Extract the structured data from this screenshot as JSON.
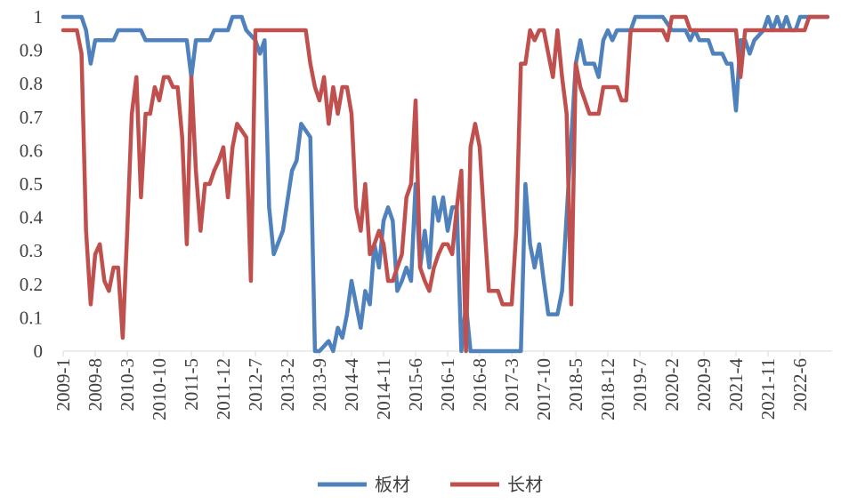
{
  "chart_data": {
    "type": "line",
    "title": "",
    "xlabel": "",
    "ylabel": "",
    "ylim": [
      0,
      1
    ],
    "yticks": [
      "0",
      "0.1",
      "0.2",
      "0.3",
      "0.4",
      "0.5",
      "0.6",
      "0.7",
      "0.8",
      "0.9",
      "1"
    ],
    "xlim": [
      "2009-1",
      "2023-1"
    ],
    "xticks": [
      "2009-1",
      "2009-8",
      "2010-3",
      "2010-10",
      "2011-5",
      "2011-12",
      "2012-7",
      "2013-2",
      "2013-9",
      "2014-4",
      "2014-11",
      "2015-6",
      "2016-1",
      "2016-8",
      "2017-3",
      "2017-10",
      "2018-5",
      "2018-12",
      "2019-7",
      "2020-2",
      "2020-9",
      "2021-4",
      "2021-11",
      "2022-6"
    ],
    "grid": false,
    "legend": "bottom",
    "series": [
      {
        "name": "板材",
        "color": "#4F81BD",
        "points": [
          [
            "2009-1",
            1.0
          ],
          [
            "2009-3",
            1.0
          ],
          [
            "2009-5",
            1.0
          ],
          [
            "2009-6",
            0.96
          ],
          [
            "2009-7",
            0.86
          ],
          [
            "2009-8",
            0.93
          ],
          [
            "2009-10",
            0.93
          ],
          [
            "2009-12",
            0.93
          ],
          [
            "2010-1",
            0.96
          ],
          [
            "2010-3",
            0.96
          ],
          [
            "2010-6",
            0.96
          ],
          [
            "2010-7",
            0.93
          ],
          [
            "2010-10",
            0.93
          ],
          [
            "2011-1",
            0.93
          ],
          [
            "2011-4",
            0.93
          ],
          [
            "2011-5",
            0.82
          ],
          [
            "2011-6",
            0.93
          ],
          [
            "2011-9",
            0.93
          ],
          [
            "2011-10",
            0.96
          ],
          [
            "2012-1",
            0.96
          ],
          [
            "2012-2",
            1.0
          ],
          [
            "2012-4",
            1.0
          ],
          [
            "2012-5",
            0.96
          ],
          [
            "2012-7",
            0.93
          ],
          [
            "2012-8",
            0.89
          ],
          [
            "2012-9",
            0.93
          ],
          [
            "2012-10",
            0.43
          ],
          [
            "2012-11",
            0.29
          ],
          [
            "2013-1",
            0.36
          ],
          [
            "2013-3",
            0.54
          ],
          [
            "2013-4",
            0.57
          ],
          [
            "2013-5",
            0.68
          ],
          [
            "2013-7",
            0.64
          ],
          [
            "2013-8",
            0.0
          ],
          [
            "2013-9",
            0.0
          ],
          [
            "2013-11",
            0.03
          ],
          [
            "2013-12",
            0.0
          ],
          [
            "2014-1",
            0.07
          ],
          [
            "2014-2",
            0.04
          ],
          [
            "2014-3",
            0.11
          ],
          [
            "2014-4",
            0.21
          ],
          [
            "2014-5",
            0.14
          ],
          [
            "2014-6",
            0.07
          ],
          [
            "2014-7",
            0.18
          ],
          [
            "2014-8",
            0.14
          ],
          [
            "2014-9",
            0.32
          ],
          [
            "2014-10",
            0.25
          ],
          [
            "2014-11",
            0.39
          ],
          [
            "2014-12",
            0.43
          ],
          [
            "2015-1",
            0.39
          ],
          [
            "2015-2",
            0.18
          ],
          [
            "2015-3",
            0.21
          ],
          [
            "2015-4",
            0.25
          ],
          [
            "2015-5",
            0.21
          ],
          [
            "2015-6",
            0.5
          ],
          [
            "2015-7",
            0.25
          ],
          [
            "2015-8",
            0.36
          ],
          [
            "2015-9",
            0.25
          ],
          [
            "2015-10",
            0.46
          ],
          [
            "2015-11",
            0.39
          ],
          [
            "2015-12",
            0.46
          ],
          [
            "2016-1",
            0.36
          ],
          [
            "2016-2",
            0.43
          ],
          [
            "2016-3",
            0.43
          ],
          [
            "2016-4",
            0.0
          ],
          [
            "2016-5",
            0.14
          ],
          [
            "2016-6",
            0.0
          ],
          [
            "2016-9",
            0.0
          ],
          [
            "2017-1",
            0.0
          ],
          [
            "2017-3",
            0.0
          ],
          [
            "2017-5",
            0.0
          ],
          [
            "2017-6",
            0.5
          ],
          [
            "2017-7",
            0.32
          ],
          [
            "2017-8",
            0.25
          ],
          [
            "2017-9",
            0.32
          ],
          [
            "2017-10",
            0.21
          ],
          [
            "2017-11",
            0.11
          ],
          [
            "2018-1",
            0.11
          ],
          [
            "2018-2",
            0.18
          ],
          [
            "2018-5",
            0.86
          ],
          [
            "2018-6",
            0.93
          ],
          [
            "2018-7",
            0.86
          ],
          [
            "2018-9",
            0.86
          ],
          [
            "2018-10",
            0.82
          ],
          [
            "2018-11",
            0.93
          ],
          [
            "2018-12",
            0.96
          ],
          [
            "2019-1",
            0.93
          ],
          [
            "2019-2",
            0.96
          ],
          [
            "2019-5",
            0.96
          ],
          [
            "2019-6",
            1.0
          ],
          [
            "2019-9",
            1.0
          ],
          [
            "2019-12",
            1.0
          ],
          [
            "2020-2",
            0.96
          ],
          [
            "2020-5",
            0.96
          ],
          [
            "2020-6",
            0.93
          ],
          [
            "2020-7",
            0.96
          ],
          [
            "2020-8",
            0.93
          ],
          [
            "2020-10",
            0.93
          ],
          [
            "2020-11",
            0.89
          ],
          [
            "2021-1",
            0.89
          ],
          [
            "2021-2",
            0.86
          ],
          [
            "2021-3",
            0.86
          ],
          [
            "2021-4",
            0.72
          ],
          [
            "2021-5",
            0.93
          ],
          [
            "2021-6",
            0.93
          ],
          [
            "2021-7",
            0.89
          ],
          [
            "2021-8",
            0.93
          ],
          [
            "2021-10",
            0.96
          ],
          [
            "2021-11",
            1.0
          ],
          [
            "2021-12",
            0.96
          ],
          [
            "2022-1",
            1.0
          ],
          [
            "2022-2",
            0.96
          ],
          [
            "2022-3",
            1.0
          ],
          [
            "2022-4",
            0.96
          ],
          [
            "2022-5",
            0.96
          ],
          [
            "2022-6",
            1.0
          ],
          [
            "2022-12",
            1.0
          ]
        ]
      },
      {
        "name": "长材",
        "color": "#C0504D",
        "points": [
          [
            "2009-1",
            0.96
          ],
          [
            "2009-4",
            0.96
          ],
          [
            "2009-5",
            0.89
          ],
          [
            "2009-6",
            0.36
          ],
          [
            "2009-7",
            0.14
          ],
          [
            "2009-8",
            0.29
          ],
          [
            "2009-9",
            0.32
          ],
          [
            "2009-10",
            0.21
          ],
          [
            "2009-11",
            0.18
          ],
          [
            "2009-12",
            0.25
          ],
          [
            "2010-1",
            0.25
          ],
          [
            "2010-2",
            0.04
          ],
          [
            "2010-3",
            0.36
          ],
          [
            "2010-4",
            0.71
          ],
          [
            "2010-5",
            0.82
          ],
          [
            "2010-6",
            0.46
          ],
          [
            "2010-7",
            0.71
          ],
          [
            "2010-8",
            0.71
          ],
          [
            "2010-9",
            0.79
          ],
          [
            "2010-10",
            0.75
          ],
          [
            "2010-11",
            0.82
          ],
          [
            "2010-12",
            0.82
          ],
          [
            "2011-1",
            0.79
          ],
          [
            "2011-2",
            0.79
          ],
          [
            "2011-3",
            0.64
          ],
          [
            "2011-4",
            0.32
          ],
          [
            "2011-5",
            0.82
          ],
          [
            "2011-6",
            0.54
          ],
          [
            "2011-7",
            0.36
          ],
          [
            "2011-8",
            0.5
          ],
          [
            "2011-9",
            0.5
          ],
          [
            "2011-10",
            0.54
          ],
          [
            "2011-11",
            0.57
          ],
          [
            "2011-12",
            0.61
          ],
          [
            "2012-1",
            0.46
          ],
          [
            "2012-2",
            0.61
          ],
          [
            "2012-3",
            0.68
          ],
          [
            "2012-5",
            0.64
          ],
          [
            "2012-6",
            0.21
          ],
          [
            "2012-7",
            0.96
          ],
          [
            "2012-11",
            0.96
          ],
          [
            "2013-4",
            0.96
          ],
          [
            "2013-6",
            0.96
          ],
          [
            "2013-7",
            0.86
          ],
          [
            "2013-8",
            0.79
          ],
          [
            "2013-9",
            0.75
          ],
          [
            "2013-10",
            0.82
          ],
          [
            "2013-11",
            0.68
          ],
          [
            "2013-12",
            0.79
          ],
          [
            "2014-1",
            0.71
          ],
          [
            "2014-2",
            0.79
          ],
          [
            "2014-3",
            0.79
          ],
          [
            "2014-4",
            0.71
          ],
          [
            "2014-5",
            0.43
          ],
          [
            "2014-6",
            0.36
          ],
          [
            "2014-7",
            0.5
          ],
          [
            "2014-8",
            0.29
          ],
          [
            "2014-9",
            0.32
          ],
          [
            "2014-10",
            0.36
          ],
          [
            "2014-11",
            0.32
          ],
          [
            "2014-12",
            0.21
          ],
          [
            "2015-1",
            0.21
          ],
          [
            "2015-2",
            0.25
          ],
          [
            "2015-3",
            0.29
          ],
          [
            "2015-4",
            0.46
          ],
          [
            "2015-5",
            0.5
          ],
          [
            "2015-6",
            0.75
          ],
          [
            "2015-7",
            0.25
          ],
          [
            "2015-8",
            0.21
          ],
          [
            "2015-9",
            0.18
          ],
          [
            "2015-10",
            0.25
          ],
          [
            "2015-11",
            0.29
          ],
          [
            "2015-12",
            0.32
          ],
          [
            "2016-1",
            0.32
          ],
          [
            "2016-2",
            0.29
          ],
          [
            "2016-3",
            0.43
          ],
          [
            "2016-4",
            0.54
          ],
          [
            "2016-5",
            0.0
          ],
          [
            "2016-6",
            0.61
          ],
          [
            "2016-7",
            0.68
          ],
          [
            "2016-8",
            0.61
          ],
          [
            "2016-9",
            0.39
          ],
          [
            "2016-10",
            0.18
          ],
          [
            "2016-12",
            0.18
          ],
          [
            "2017-1",
            0.14
          ],
          [
            "2017-3",
            0.14
          ],
          [
            "2017-4",
            0.36
          ],
          [
            "2017-5",
            0.86
          ],
          [
            "2017-6",
            0.86
          ],
          [
            "2017-7",
            0.96
          ],
          [
            "2017-8",
            0.93
          ],
          [
            "2017-9",
            0.96
          ],
          [
            "2017-10",
            0.96
          ],
          [
            "2017-11",
            0.89
          ],
          [
            "2017-12",
            0.82
          ],
          [
            "2018-1",
            0.96
          ],
          [
            "2018-2",
            0.82
          ],
          [
            "2018-3",
            0.71
          ],
          [
            "2018-4",
            0.14
          ],
          [
            "2018-5",
            0.86
          ],
          [
            "2018-6",
            0.79
          ],
          [
            "2018-7",
            0.75
          ],
          [
            "2018-8",
            0.71
          ],
          [
            "2018-10",
            0.71
          ],
          [
            "2018-11",
            0.79
          ],
          [
            "2019-1",
            0.79
          ],
          [
            "2019-2",
            0.79
          ],
          [
            "2019-3",
            0.75
          ],
          [
            "2019-4",
            0.75
          ],
          [
            "2019-5",
            0.96
          ],
          [
            "2019-10",
            0.96
          ],
          [
            "2019-12",
            0.96
          ],
          [
            "2020-1",
            0.93
          ],
          [
            "2020-2",
            1.0
          ],
          [
            "2020-5",
            1.0
          ],
          [
            "2020-6",
            0.96
          ],
          [
            "2020-10",
            0.96
          ],
          [
            "2021-1",
            0.96
          ],
          [
            "2021-4",
            0.96
          ],
          [
            "2021-5",
            0.82
          ],
          [
            "2021-6",
            0.96
          ],
          [
            "2021-9",
            0.96
          ],
          [
            "2022-6",
            0.96
          ],
          [
            "2022-7",
            0.96
          ],
          [
            "2022-8",
            1.0
          ],
          [
            "2022-12",
            1.0
          ]
        ]
      }
    ]
  }
}
